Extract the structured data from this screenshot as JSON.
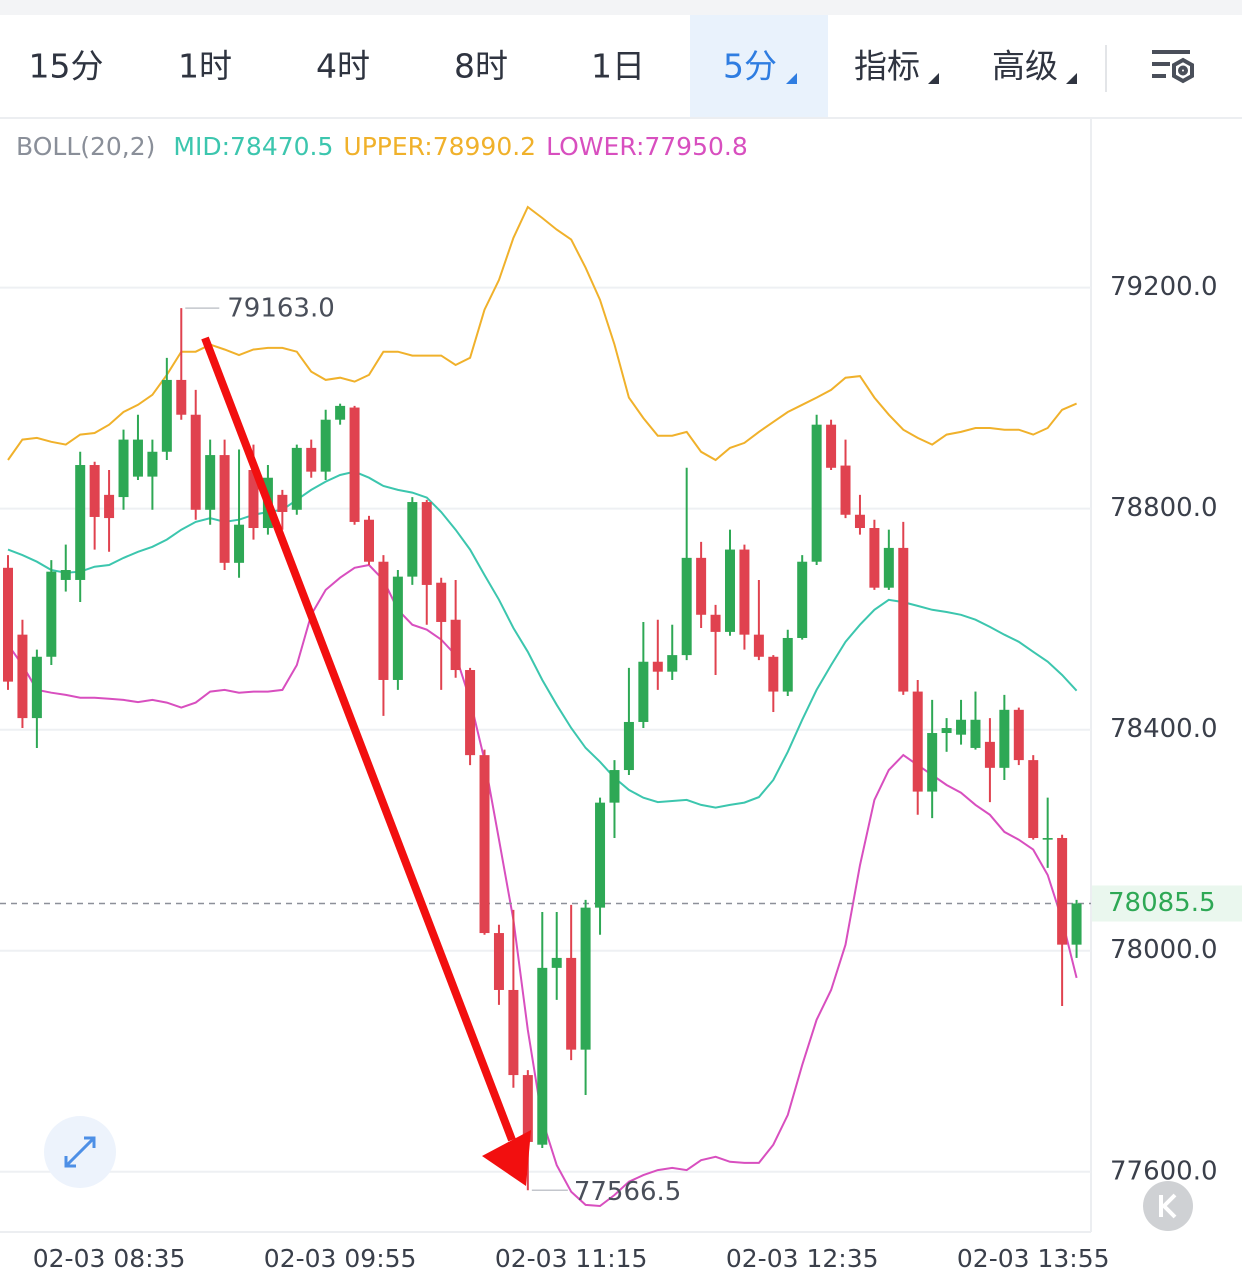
{
  "toolbar": {
    "tabs": [
      "15分",
      "1时",
      "4时",
      "8时",
      "1日",
      "5分"
    ],
    "menus": [
      "指标",
      "高级"
    ]
  },
  "chart_data": {
    "type": "candlestick",
    "indicator": "BOLL(20,2)",
    "categories": [
      null,
      null,
      null,
      null,
      null,
      null,
      null,
      "02-03 08:35",
      null,
      null,
      null,
      null,
      null,
      null,
      null,
      null,
      null,
      null,
      null,
      null,
      null,
      null,
      null,
      "02-03 09:55",
      null,
      null,
      null,
      null,
      null,
      null,
      null,
      null,
      null,
      null,
      null,
      null,
      null,
      null,
      null,
      "02-03 11:15",
      null,
      null,
      null,
      null,
      null,
      null,
      null,
      null,
      null,
      null,
      null,
      null,
      null,
      null,
      null,
      "02-03 12:35",
      null,
      null,
      null,
      null,
      null,
      null,
      null,
      null,
      null,
      null,
      null,
      null,
      null,
      null,
      null,
      "02-03 13:55",
      null,
      null,
      null
    ],
    "open": [
      78693,
      78572,
      78421,
      78532,
      78671,
      78671,
      78879,
      78825,
      78821,
      78858,
      78858,
      78903,
      79033,
      78970,
      78798,
      78897,
      78702,
      78870,
      78765,
      78825,
      78798,
      78910,
      78867,
      78961,
      78983,
      78780,
      78704,
      78490,
      78677,
      78812,
      78666,
      78599,
      78508,
      78354,
      78032,
      77929,
      77775,
      77649,
      77969,
      77987,
      77821,
      78078,
      78268,
      78327,
      78414,
      78523,
      78505,
      78535,
      78711,
      78608,
      78577,
      78726,
      78572,
      78532,
      78469,
      78566,
      78704,
      78952,
      78878,
      78789,
      78765,
      78657,
      78729,
      78469,
      78288,
      78394,
      78391,
      78367,
      78378,
      78331,
      78436,
      78345,
      78201,
      78204,
      78011
    ],
    "high": [
      78716,
      78599,
      78545,
      78707,
      78735,
      78903,
      78885,
      78870,
      78943,
      78970,
      78925,
      79073,
      79163,
      79015,
      78925,
      78925,
      78907,
      78916,
      78879,
      78834,
      78916,
      78925,
      78979,
      78990,
      78986,
      78787,
      78716,
      78689,
      78821,
      78816,
      78675,
      78671,
      78512,
      78364,
      78047,
      78074,
      77784,
      78070,
      78070,
      78083,
      78092,
      78277,
      78345,
      78512,
      78595,
      78599,
      78590,
      78874,
      78740,
      78626,
      78762,
      78735,
      78671,
      78535,
      78581,
      78716,
      78970,
      78961,
      78925,
      78825,
      78780,
      78762,
      78776,
      78490,
      78454,
      78421,
      78454,
      78469,
      78421,
      78463,
      78440,
      78354,
      78277,
      78210,
      78092
    ],
    "low": [
      78472,
      78403,
      78367,
      78517,
      78650,
      78631,
      78726,
      78722,
      78798,
      78852,
      78798,
      78888,
      78961,
      78780,
      78771,
      78689,
      78675,
      78744,
      78753,
      78762,
      78789,
      78856,
      78852,
      78952,
      78771,
      78698,
      78425,
      78472,
      78662,
      78590,
      78472,
      78494,
      78336,
      78029,
      77902,
      77752,
      77566.5,
      77643,
      77911,
      77802,
      77739,
      78029,
      78204,
      78318,
      78403,
      78472,
      78490,
      78526,
      78584,
      78499,
      78570,
      78545,
      78526,
      78432,
      78461,
      78563,
      78698,
      78870,
      78783,
      78753,
      78653,
      78653,
      78463,
      78246,
      78240,
      78360,
      78373,
      78364,
      78269,
      78309,
      78336,
      78201,
      78150,
      77900,
      77987
    ],
    "close": [
      78487,
      78421,
      78532,
      78686,
      78689,
      78879,
      78785,
      78783,
      78925,
      78925,
      78903,
      79033,
      78970,
      78798,
      78897,
      78702,
      78771,
      78765,
      78856,
      78794,
      78910,
      78867,
      78961,
      78986,
      78776,
      78704,
      78490,
      78677,
      78812,
      78662,
      78595,
      78508,
      78354,
      78032,
      77929,
      77775,
      77654,
      77969,
      77987,
      77821,
      78078,
      78268,
      78327,
      78414,
      78523,
      78505,
      78535,
      78711,
      78608,
      78577,
      78726,
      78572,
      78532,
      78469,
      78566,
      78704,
      78952,
      78874,
      78789,
      78765,
      78657,
      78729,
      78469,
      78288,
      78394,
      78403,
      78418,
      78418,
      78331,
      78436,
      78345,
      78204,
      78204,
      78011,
      78085.5
    ],
    "up_color": "#2ea855",
    "down_color": "#e0424f",
    "series": [
      {
        "name": "MID",
        "color": "#3cc6ae",
        "values": [
          78726,
          78716,
          78704,
          78689,
          78684,
          78686,
          78695,
          78698,
          78711,
          78722,
          78731,
          78744,
          78762,
          78776,
          78783,
          78776,
          78780,
          78789,
          78794,
          78798,
          78816,
          78834,
          78849,
          78861,
          78867,
          78856,
          78841,
          78834,
          78829,
          78820,
          78794,
          78762,
          78726,
          78680,
          78635,
          78584,
          78541,
          78490,
          78445,
          78403,
          78367,
          78342,
          78313,
          78291,
          78277,
          78269,
          78271,
          78273,
          78264,
          78259,
          78264,
          78268,
          78278,
          78309,
          78360,
          78418,
          78472,
          78517,
          78559,
          78590,
          78617,
          78635,
          78631,
          78624,
          78617,
          78613,
          78608,
          78599,
          78586,
          78572,
          78559,
          78541,
          78523,
          78499,
          78470.5
        ]
      },
      {
        "name": "UPPER",
        "color": "#f0b12b",
        "values": [
          78888,
          78925,
          78928,
          78921,
          78916,
          78934,
          78937,
          78952,
          78975,
          78988,
          79006,
          79042,
          79084,
          79084,
          79097,
          79088,
          79078,
          79088,
          79091,
          79091,
          79084,
          79048,
          79033,
          79037,
          79030,
          79042,
          79084,
          79084,
          79077,
          79077,
          79077,
          79060,
          79073,
          79160,
          79214,
          79290,
          79346,
          79326,
          79305,
          79287,
          79236,
          79178,
          79097,
          79001,
          78964,
          78932,
          78932,
          78939,
          78903,
          78888,
          78910,
          78919,
          78939,
          78957,
          78975,
          78988,
          79001,
          79015,
          79037,
          79040,
          79001,
          78970,
          78943,
          78928,
          78916,
          78934,
          78939,
          78946,
          78946,
          78943,
          78943,
          78934,
          78946,
          78979,
          78990.2
        ]
      },
      {
        "name": "LOWER",
        "color": "#d84fbf",
        "values": [
          78554,
          78517,
          78472,
          78467,
          78463,
          78458,
          78458,
          78456,
          78454,
          78450,
          78454,
          78449,
          78440,
          78449,
          78469,
          78472,
          78467,
          78469,
          78469,
          78472,
          78517,
          78608,
          78653,
          78675,
          78693,
          78698,
          78671,
          78617,
          78590,
          78581,
          78563,
          78535,
          78454,
          78345,
          78201,
          78056,
          77857,
          77694,
          77612,
          77564,
          77540,
          77538,
          77558,
          77582,
          77594,
          77603,
          77607,
          77603,
          77621,
          77627,
          77618,
          77616,
          77616,
          77649,
          77703,
          77793,
          77875,
          77929,
          78011,
          78155,
          78273,
          78327,
          78354,
          78336,
          78318,
          78300,
          78286,
          78264,
          78246,
          78215,
          78201,
          78183,
          78137,
          78056,
          77950.8
        ]
      }
    ],
    "ylim": [
      77491,
      79507
    ],
    "yticks": [
      {
        "value": 77600,
        "label": "77600.0"
      },
      {
        "value": 78000,
        "label": "78000.0"
      },
      {
        "value": 78400,
        "label": "78400.0"
      },
      {
        "value": 78800,
        "label": "78800.0"
      },
      {
        "value": 79200,
        "label": "79200.0"
      }
    ],
    "grid": true,
    "last_price": 78085.5,
    "max_label": "79163.0",
    "min_label": "77566.5"
  }
}
